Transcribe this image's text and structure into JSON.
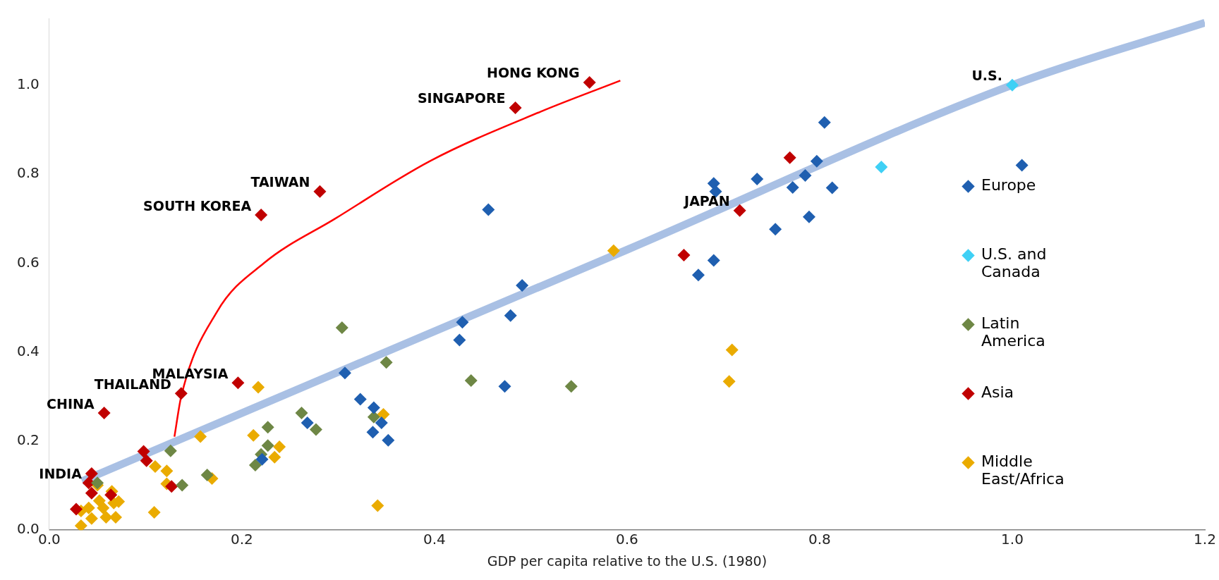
{
  "chart_data": {
    "type": "scatter",
    "xlabel": "GDP per capita relative to the U.S. (1980)",
    "xlim": [
      0,
      1.2
    ],
    "xticks": [
      {
        "value": 0,
        "label": "0.0"
      },
      {
        "value": 0.2,
        "label": "0.2"
      },
      {
        "value": 0.4,
        "label": "0.4"
      },
      {
        "value": 0.6,
        "label": "0.6"
      },
      {
        "value": 0.8,
        "label": "0.8"
      },
      {
        "value": 1,
        "label": "1.0"
      },
      {
        "value": 1.2,
        "label": "1.2"
      }
    ],
    "ylim": [
      0,
      1.15
    ],
    "yticks": [
      {
        "value": 0,
        "label": "0.0"
      },
      {
        "value": 0.2,
        "label": "0.2"
      },
      {
        "value": 0.4,
        "label": "0.4"
      },
      {
        "value": 0.6,
        "label": "0.6"
      },
      {
        "value": 0.8,
        "label": "0.8"
      },
      {
        "value": 1,
        "label": "1.0"
      }
    ],
    "grid": false,
    "legend": "right",
    "marker": "diamond",
    "series": [
      {
        "type": "line",
        "marker": "none",
        "color": "#a9c0e4",
        "x": [
          0.034,
          0.3,
          0.6,
          1.0,
          1.2
        ],
        "values": [
          0.11,
          0.355,
          0.63,
          1.0,
          1.14
        ]
      },
      {
        "type": "line",
        "marker": "none",
        "color": "#ff0000",
        "x": [
          0.13,
          0.137,
          0.174,
          0.223,
          0.297,
          0.396,
          0.51,
          0.593
        ],
        "values": [
          0.21,
          0.3,
          0.49,
          0.6,
          0.7,
          0.83,
          0.94,
          1.01
        ]
      },
      {
        "name": "Europe",
        "color": "#1f5fb0",
        "x": [
          0.456,
          0.491,
          0.429,
          0.479,
          0.426,
          0.307,
          0.473,
          0.323,
          0.337,
          0.345,
          0.336,
          0.352,
          0.268,
          0.221,
          0.805,
          0.797,
          0.785,
          0.772,
          0.813,
          0.735,
          0.69,
          0.692,
          0.789,
          0.754,
          0.69,
          0.674,
          1.01
        ],
        "values": [
          0.72,
          0.55,
          0.467,
          0.482,
          0.427,
          0.353,
          0.323,
          0.294,
          0.275,
          0.241,
          0.22,
          0.202,
          0.241,
          0.159,
          0.916,
          0.829,
          0.797,
          0.77,
          0.769,
          0.789,
          0.779,
          0.761,
          0.704,
          0.676,
          0.606,
          0.573,
          0.82
        ]
      },
      {
        "name": "U.S. and Canada",
        "color": "#3fd0f5",
        "x": [
          1.0,
          0.864
        ],
        "values": [
          1.0,
          0.816
        ]
      },
      {
        "name": "Latin America",
        "color": "#6e8745",
        "x": [
          0.304,
          0.35,
          0.438,
          0.542,
          0.337,
          0.277,
          0.262,
          0.227,
          0.227,
          0.22,
          0.214,
          0.138,
          0.164,
          0.126,
          0.05
        ],
        "values": [
          0.455,
          0.377,
          0.336,
          0.323,
          0.254,
          0.226,
          0.263,
          0.231,
          0.19,
          0.17,
          0.146,
          0.101,
          0.124,
          0.178,
          0.106
        ]
      },
      {
        "name": "Asia",
        "color": "#c00000",
        "x": [
          0.561,
          0.484,
          0.281,
          0.22,
          0.717,
          0.769,
          0.659,
          0.196,
          0.137,
          0.057,
          0.098,
          0.101,
          0.127,
          0.044,
          0.041,
          0.044,
          0.028,
          0.064
        ],
        "values": [
          1.006,
          0.949,
          0.761,
          0.708,
          0.718,
          0.837,
          0.618,
          0.331,
          0.307,
          0.263,
          0.177,
          0.156,
          0.098,
          0.127,
          0.106,
          0.083,
          0.047,
          0.079
        ]
      },
      {
        "name": "Middle East/Africa",
        "color": "#eaab00",
        "x": [
          0.586,
          0.709,
          0.706,
          0.347,
          0.217,
          0.157,
          0.212,
          0.239,
          0.234,
          0.341,
          0.169,
          0.109,
          0.11,
          0.122,
          0.122,
          0.05,
          0.033,
          0.044,
          0.033,
          0.056,
          0.069,
          0.067,
          0.065,
          0.052,
          0.059,
          0.041,
          0.072
        ],
        "values": [
          0.628,
          0.405,
          0.334,
          0.26,
          0.321,
          0.21,
          0.213,
          0.187,
          0.164,
          0.055,
          0.116,
          0.04,
          0.143,
          0.133,
          0.104,
          0.101,
          0.043,
          0.026,
          0.01,
          0.05,
          0.029,
          0.061,
          0.087,
          0.066,
          0.029,
          0.05,
          0.064
        ]
      }
    ],
    "annotations": [
      {
        "text": "HONG KONG",
        "x": 0.561,
        "y": 1.006
      },
      {
        "text": "SINGAPORE",
        "x": 0.484,
        "y": 0.949
      },
      {
        "text": "TAIWAN",
        "x": 0.281,
        "y": 0.761
      },
      {
        "text": "SOUTH KOREA",
        "x": 0.22,
        "y": 0.708
      },
      {
        "text": "JAPAN",
        "x": 0.717,
        "y": 0.718
      },
      {
        "text": "MALAYSIA",
        "x": 0.196,
        "y": 0.331
      },
      {
        "text": "THAILAND",
        "x": 0.137,
        "y": 0.307
      },
      {
        "text": "CHINA",
        "x": 0.057,
        "y": 0.263
      },
      {
        "text": "INDIA",
        "x": 0.044,
        "y": 0.106
      },
      {
        "text": "U.S.",
        "x": 1.0,
        "y": 1.0
      }
    ]
  }
}
